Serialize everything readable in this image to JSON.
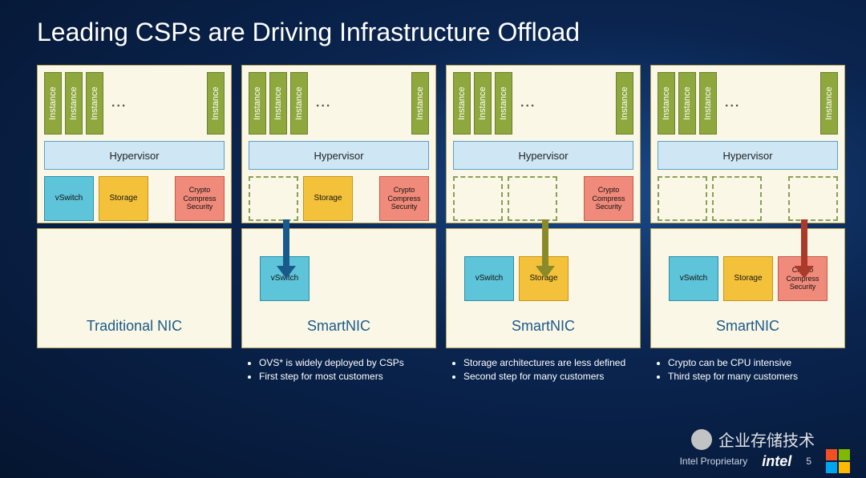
{
  "title": "Leading CSPs are Driving Infrastructure Offload",
  "labels": {
    "instance": "Instance",
    "hypervisor": "Hypervisor",
    "dots": "...",
    "vswitch": "vSwitch",
    "storage": "Storage",
    "crypto": "Crypto Compress Security"
  },
  "colors": {
    "background_inner": "#1a4a8a",
    "background_outer": "#051530",
    "card_bg": "#fbf7e6",
    "card_border": "#b8a55a",
    "instance_fill": "#8ea83e",
    "hypervisor_fill": "#cfe7f5",
    "vswitch_fill": "#5ec4d9",
    "storage_fill": "#f4c23a",
    "crypto_fill": "#f08a7a",
    "ghost_border": "#8aa05a",
    "arrow_blue": "#1a5a8a",
    "arrow_olive": "#8a8a2a",
    "arrow_red": "#aa3a2a",
    "nic_label": "#1a5a8a",
    "title_color": "#ffffff"
  },
  "typography": {
    "title_fontsize": 32,
    "nic_label_fontsize": 18,
    "box_fontsize": 10,
    "bullet_fontsize": 12
  },
  "columns": [
    {
      "nic_label": "Traditional NIC",
      "upper_boxes": [
        "vswitch",
        "storage",
        "crypto"
      ],
      "upper_ghosts": [],
      "lower_boxes": [],
      "arrow": null,
      "bullets": []
    },
    {
      "nic_label": "SmartNIC",
      "upper_boxes": [
        "storage",
        "crypto"
      ],
      "upper_ghosts": [
        "vswitch"
      ],
      "lower_boxes": [
        "vswitch"
      ],
      "arrow": "blue",
      "bullets": [
        "OVS* is widely deployed by CSPs",
        "First step for most customers"
      ]
    },
    {
      "nic_label": "SmartNIC",
      "upper_boxes": [
        "crypto"
      ],
      "upper_ghosts": [
        "vswitch",
        "storage"
      ],
      "lower_boxes": [
        "vswitch",
        "storage"
      ],
      "arrow": "olive",
      "bullets": [
        "Storage architectures are less defined",
        "Second step for many customers"
      ]
    },
    {
      "nic_label": "SmartNIC",
      "upper_boxes": [],
      "upper_ghosts": [
        "vswitch",
        "storage",
        "crypto"
      ],
      "lower_boxes": [
        "vswitch",
        "storage",
        "crypto"
      ],
      "arrow": "red",
      "bullets": [
        "Crypto can be CPU intensive",
        "Third step for many customers"
      ]
    }
  ],
  "footer": {
    "proprietary": "Intel Proprietary",
    "page_number": "5",
    "logo": "intel"
  },
  "watermark": "企业存储技术"
}
